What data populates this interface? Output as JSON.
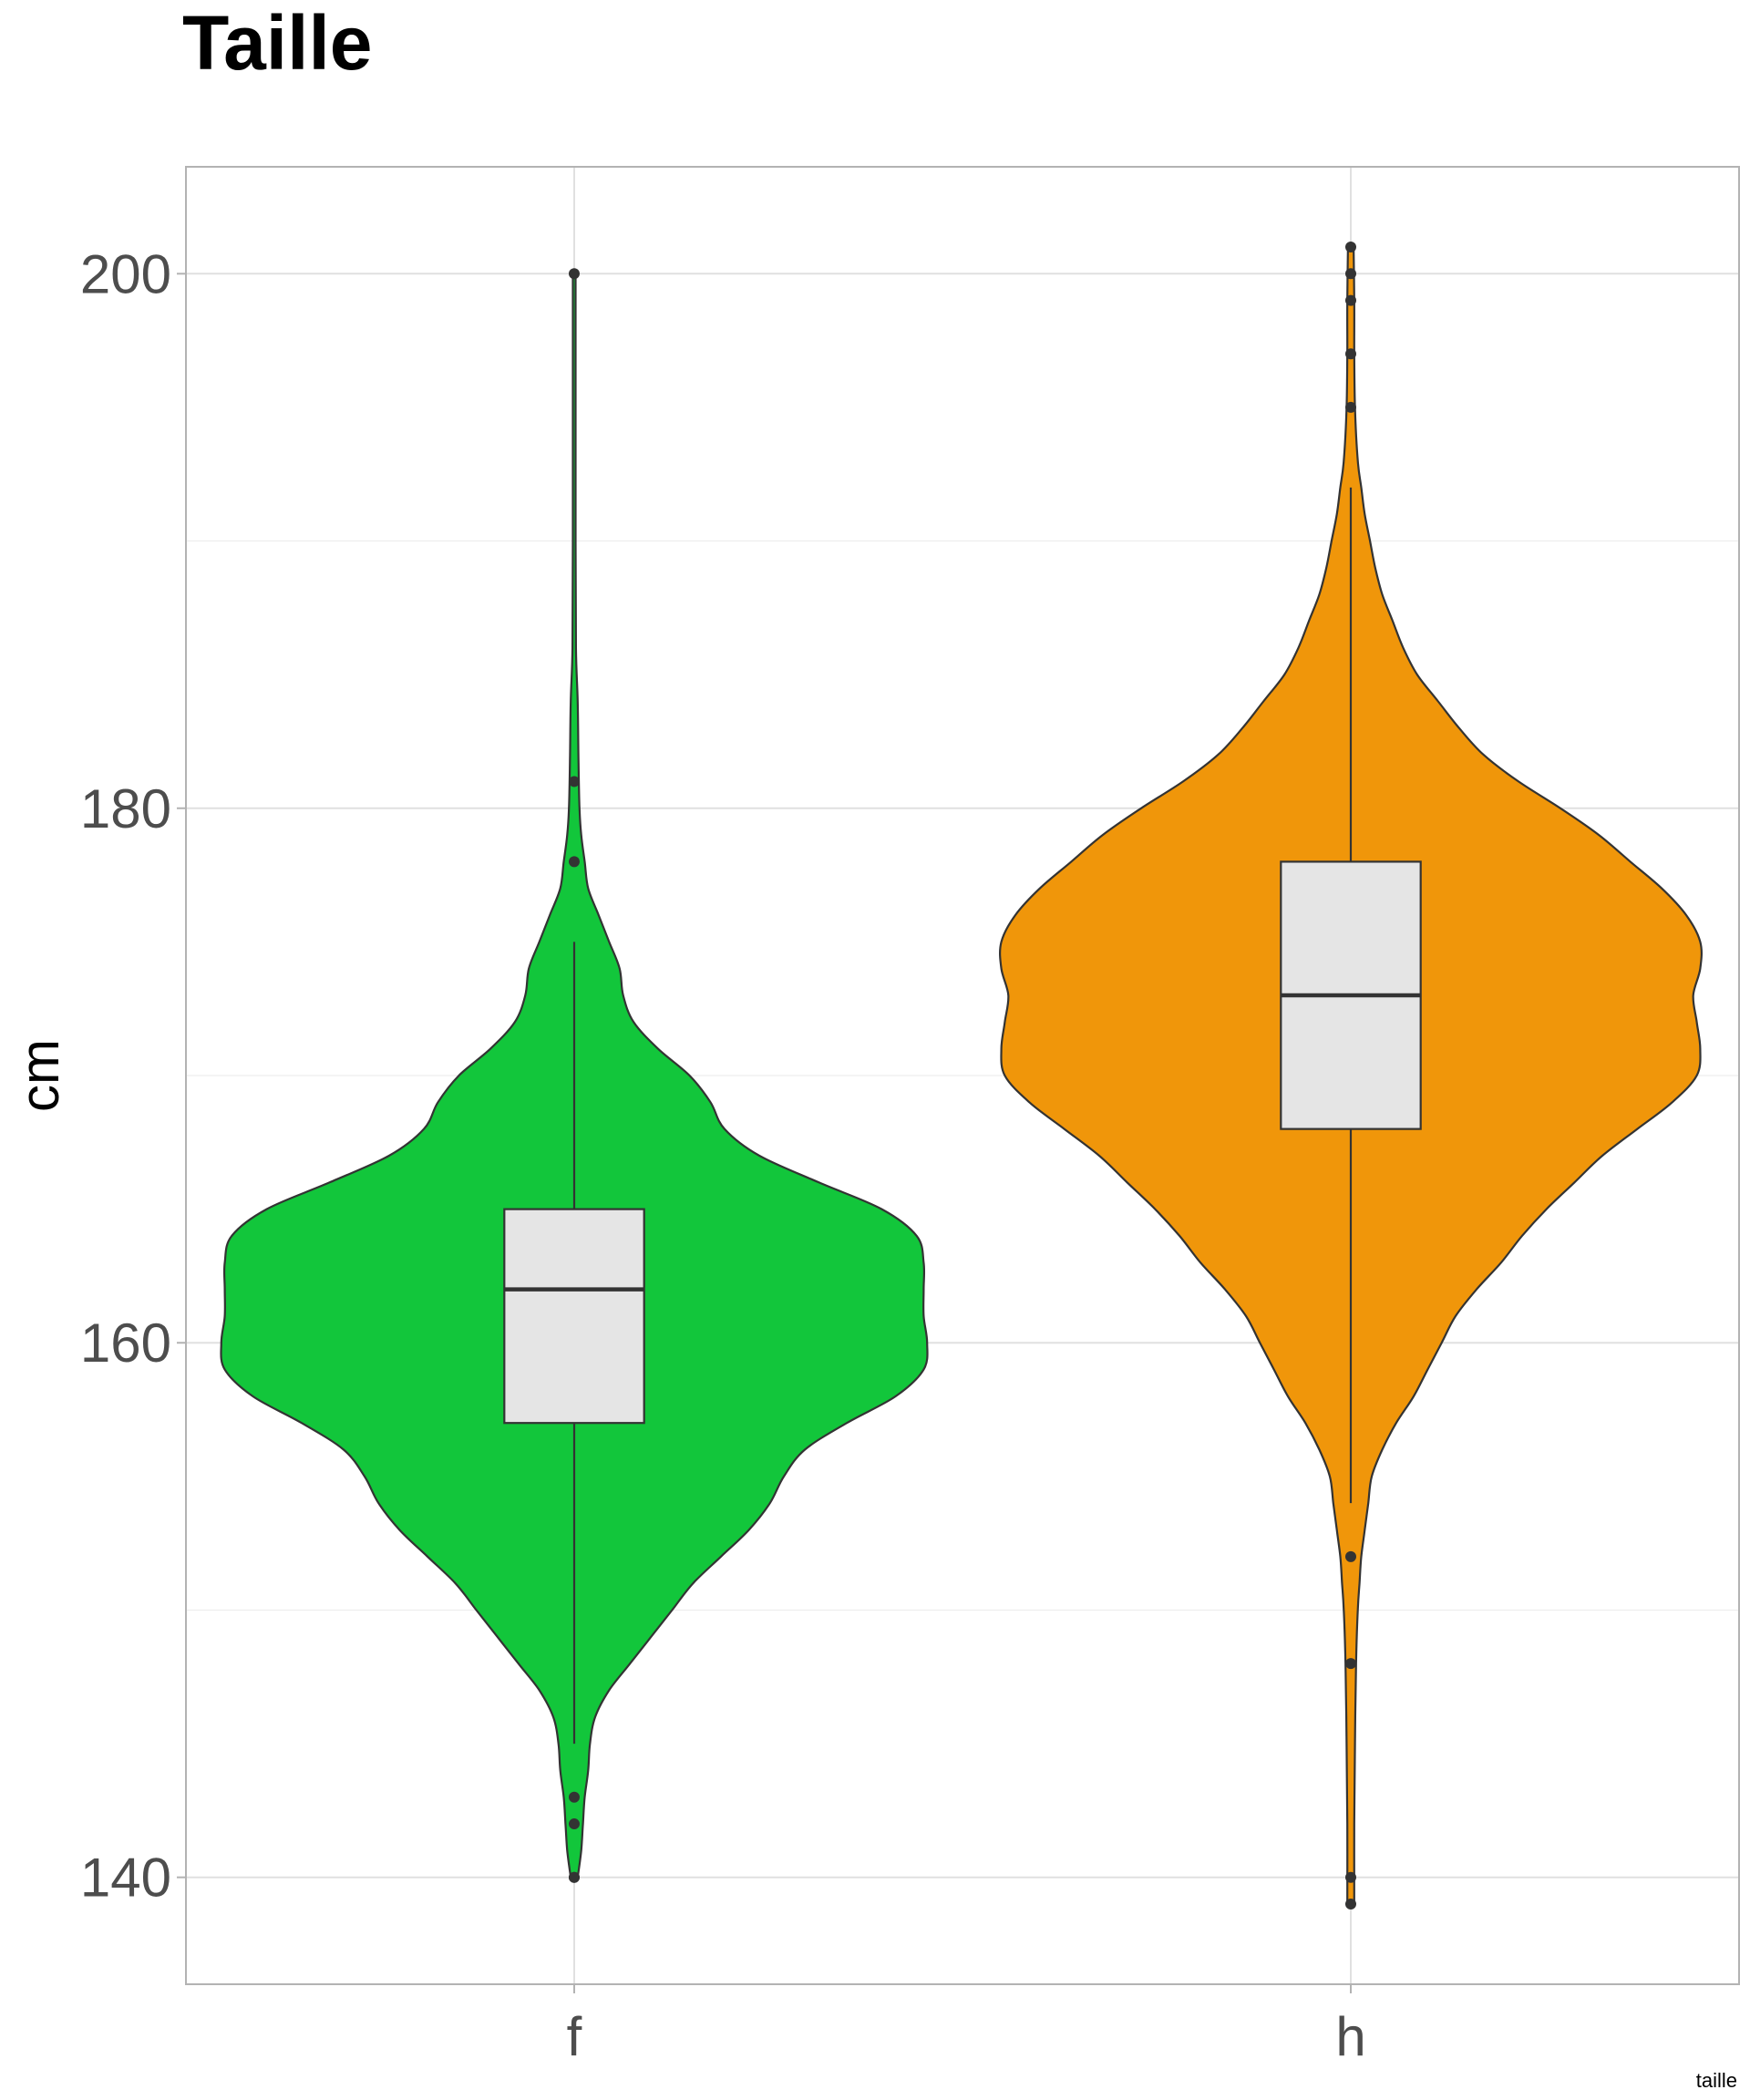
{
  "chart_data": {
    "type": "violin",
    "title": "Taille",
    "xlabel": "",
    "ylabel": "cm",
    "caption": "taille",
    "ylim": [
      136,
      204
    ],
    "yticks": [
      140,
      160,
      180,
      200
    ],
    "y_minor_gridlines": [
      150,
      170,
      190
    ],
    "grid": true,
    "legend": "none",
    "categories": [
      "f",
      "h"
    ],
    "series": [
      {
        "category": "f",
        "color": "#12c63b",
        "box": {
          "q1": 157,
          "median": 162,
          "q3": 165,
          "whisker_low": 145,
          "whisker_high": 175
        },
        "outliers": [
          140,
          140,
          142,
          143,
          178,
          181,
          200
        ],
        "range": [
          140,
          200
        ],
        "density": [
          [
            140,
            0.01
          ],
          [
            141,
            0.02
          ],
          [
            142,
            0.025
          ],
          [
            143,
            0.03
          ],
          [
            144,
            0.04
          ],
          [
            145,
            0.045
          ],
          [
            146,
            0.06
          ],
          [
            147,
            0.1
          ],
          [
            148,
            0.16
          ],
          [
            149,
            0.22
          ],
          [
            150,
            0.28
          ],
          [
            151,
            0.34
          ],
          [
            152,
            0.42
          ],
          [
            153,
            0.5
          ],
          [
            154,
            0.56
          ],
          [
            155,
            0.6
          ],
          [
            156,
            0.66
          ],
          [
            157,
            0.78
          ],
          [
            158,
            0.92
          ],
          [
            159,
            1.0
          ],
          [
            160,
            1.01
          ],
          [
            161,
            1.0
          ],
          [
            162,
            1.0
          ],
          [
            163,
            1.0
          ],
          [
            164,
            0.98
          ],
          [
            165,
            0.88
          ],
          [
            166,
            0.7
          ],
          [
            167,
            0.53
          ],
          [
            168,
            0.43
          ],
          [
            169,
            0.39
          ],
          [
            170,
            0.33
          ],
          [
            171,
            0.24
          ],
          [
            172,
            0.17
          ],
          [
            173,
            0.14
          ],
          [
            174,
            0.13
          ],
          [
            175,
            0.1
          ],
          [
            176,
            0.07
          ],
          [
            177,
            0.04
          ],
          [
            178,
            0.03
          ],
          [
            179,
            0.02
          ],
          [
            180,
            0.015
          ],
          [
            182,
            0.012
          ],
          [
            184,
            0.01
          ],
          [
            186,
            0.005
          ],
          [
            190,
            0.004
          ],
          [
            196,
            0.004
          ],
          [
            200,
            0.004
          ]
        ]
      },
      {
        "category": "h",
        "color": "#f0960a",
        "box": {
          "q1": 168,
          "median": 173,
          "q3": 178,
          "whisker_low": 154,
          "whisker_high": 192
        },
        "outliers": [
          139,
          140,
          148,
          152,
          195,
          197,
          199,
          200,
          201
        ],
        "range": [
          139,
          201
        ],
        "density": [
          [
            139,
            0.01
          ],
          [
            142,
            0.01
          ],
          [
            145,
            0.012
          ],
          [
            148,
            0.015
          ],
          [
            150,
            0.02
          ],
          [
            151,
            0.025
          ],
          [
            152,
            0.03
          ],
          [
            153,
            0.04
          ],
          [
            154,
            0.05
          ],
          [
            155,
            0.06
          ],
          [
            156,
            0.09
          ],
          [
            157,
            0.13
          ],
          [
            158,
            0.18
          ],
          [
            159,
            0.22
          ],
          [
            160,
            0.26
          ],
          [
            161,
            0.3
          ],
          [
            162,
            0.36
          ],
          [
            163,
            0.43
          ],
          [
            164,
            0.49
          ],
          [
            165,
            0.56
          ],
          [
            166,
            0.64
          ],
          [
            167,
            0.72
          ],
          [
            168,
            0.82
          ],
          [
            169,
            0.92
          ],
          [
            170,
            0.99
          ],
          [
            171,
            1.0
          ],
          [
            172,
            0.99
          ],
          [
            173,
            0.98
          ],
          [
            174,
            1.0
          ],
          [
            175,
            1.0
          ],
          [
            176,
            0.96
          ],
          [
            177,
            0.89
          ],
          [
            178,
            0.8
          ],
          [
            179,
            0.71
          ],
          [
            180,
            0.6
          ],
          [
            181,
            0.48
          ],
          [
            182,
            0.38
          ],
          [
            183,
            0.31
          ],
          [
            184,
            0.25
          ],
          [
            185,
            0.19
          ],
          [
            186,
            0.15
          ],
          [
            187,
            0.12
          ],
          [
            188,
            0.09
          ],
          [
            189,
            0.07
          ],
          [
            190,
            0.055
          ],
          [
            191,
            0.04
          ],
          [
            192,
            0.03
          ],
          [
            193,
            0.02
          ],
          [
            195,
            0.012
          ],
          [
            197,
            0.01
          ],
          [
            199,
            0.01
          ],
          [
            201,
            0.008
          ]
        ]
      }
    ]
  }
}
